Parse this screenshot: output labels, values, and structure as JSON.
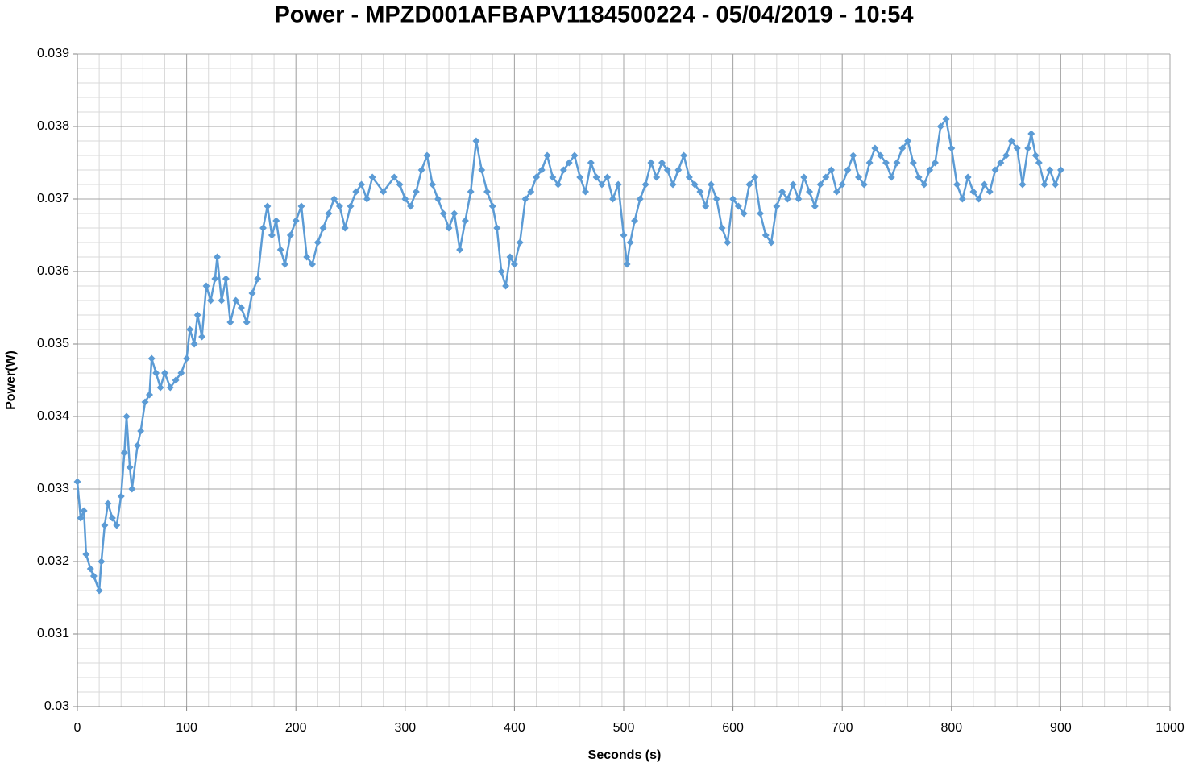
{
  "chart_data": {
    "type": "line",
    "title": "Power - MPZD001AFBAPV1184500224 - 05/04/2019 - 10:54",
    "x_label": "Seconds (s)",
    "y_label": "Power(W)",
    "xlim": [
      0,
      1000
    ],
    "xticks": [
      0,
      100,
      200,
      300,
      400,
      500,
      600,
      700,
      800,
      900,
      1000
    ],
    "ylim": [
      0.03,
      0.039
    ],
    "yticks": [
      0.03,
      0.031,
      0.032,
      0.033,
      0.034,
      0.035,
      0.036,
      0.037,
      0.038,
      0.039
    ],
    "grid": true,
    "minor_grid": {
      "x": 20,
      "y": 0.0002
    },
    "marker": "diamond",
    "x": [
      0,
      3,
      6,
      8,
      12,
      15,
      20,
      22,
      25,
      28,
      32,
      36,
      40,
      43,
      45,
      48,
      50,
      55,
      58,
      62,
      66,
      68,
      72,
      76,
      80,
      85,
      90,
      95,
      100,
      103,
      107,
      110,
      114,
      118,
      122,
      126,
      128,
      132,
      136,
      140,
      145,
      150,
      155,
      160,
      165,
      170,
      174,
      178,
      182,
      186,
      190,
      195,
      200,
      205,
      210,
      215,
      220,
      225,
      230,
      235,
      240,
      245,
      250,
      255,
      260,
      265,
      270,
      280,
      290,
      295,
      300,
      305,
      310,
      315,
      320,
      325,
      330,
      335,
      340,
      345,
      350,
      355,
      360,
      365,
      370,
      375,
      380,
      384,
      388,
      392,
      396,
      400,
      405,
      410,
      415,
      420,
      425,
      430,
      435,
      440,
      445,
      450,
      455,
      460,
      465,
      470,
      475,
      480,
      485,
      490,
      495,
      500,
      503,
      506,
      510,
      515,
      520,
      525,
      530,
      535,
      540,
      545,
      550,
      555,
      560,
      565,
      570,
      575,
      580,
      585,
      590,
      595,
      600,
      605,
      610,
      615,
      620,
      625,
      630,
      635,
      640,
      645,
      650,
      655,
      660,
      665,
      670,
      675,
      680,
      685,
      690,
      695,
      700,
      705,
      710,
      715,
      720,
      725,
      730,
      735,
      740,
      745,
      750,
      755,
      760,
      765,
      770,
      775,
      780,
      785,
      790,
      795,
      800,
      805,
      810,
      815,
      820,
      825,
      830,
      835,
      840,
      845,
      850,
      855,
      860,
      865,
      870,
      873,
      877,
      880,
      885,
      890,
      895,
      900
    ],
    "series": [
      {
        "name": "Power",
        "color": "#5b9bd5",
        "values": [
          0.0331,
          0.0326,
          0.0327,
          0.0321,
          0.0319,
          0.0318,
          0.0316,
          0.032,
          0.0325,
          0.0328,
          0.0326,
          0.0325,
          0.0329,
          0.0335,
          0.034,
          0.0333,
          0.033,
          0.0336,
          0.0338,
          0.0342,
          0.0343,
          0.0348,
          0.0346,
          0.0344,
          0.0346,
          0.0344,
          0.0345,
          0.0346,
          0.0348,
          0.0352,
          0.035,
          0.0354,
          0.0351,
          0.0358,
          0.0356,
          0.0359,
          0.0362,
          0.0356,
          0.0359,
          0.0353,
          0.0356,
          0.0355,
          0.0353,
          0.0357,
          0.0359,
          0.0366,
          0.0369,
          0.0365,
          0.0367,
          0.0363,
          0.0361,
          0.0365,
          0.0367,
          0.0369,
          0.0362,
          0.0361,
          0.0364,
          0.0366,
          0.0368,
          0.037,
          0.0369,
          0.0366,
          0.0369,
          0.0371,
          0.0372,
          0.037,
          0.0373,
          0.0371,
          0.0373,
          0.0372,
          0.037,
          0.0369,
          0.0371,
          0.0374,
          0.0376,
          0.0372,
          0.037,
          0.0368,
          0.0366,
          0.0368,
          0.0363,
          0.0367,
          0.0371,
          0.0378,
          0.0374,
          0.0371,
          0.0369,
          0.0366,
          0.036,
          0.0358,
          0.0362,
          0.0361,
          0.0364,
          0.037,
          0.0371,
          0.0373,
          0.0374,
          0.0376,
          0.0373,
          0.0372,
          0.0374,
          0.0375,
          0.0376,
          0.0373,
          0.0371,
          0.0375,
          0.0373,
          0.0372,
          0.0373,
          0.037,
          0.0372,
          0.0365,
          0.0361,
          0.0364,
          0.0367,
          0.037,
          0.0372,
          0.0375,
          0.0373,
          0.0375,
          0.0374,
          0.0372,
          0.0374,
          0.0376,
          0.0373,
          0.0372,
          0.0371,
          0.0369,
          0.0372,
          0.037,
          0.0366,
          0.0364,
          0.037,
          0.0369,
          0.0368,
          0.0372,
          0.0373,
          0.0368,
          0.0365,
          0.0364,
          0.0369,
          0.0371,
          0.037,
          0.0372,
          0.037,
          0.0373,
          0.0371,
          0.0369,
          0.0372,
          0.0373,
          0.0374,
          0.0371,
          0.0372,
          0.0374,
          0.0376,
          0.0373,
          0.0372,
          0.0375,
          0.0377,
          0.0376,
          0.0375,
          0.0373,
          0.0375,
          0.0377,
          0.0378,
          0.0375,
          0.0373,
          0.0372,
          0.0374,
          0.0375,
          0.038,
          0.0381,
          0.0377,
          0.0372,
          0.037,
          0.0373,
          0.0371,
          0.037,
          0.0372,
          0.0371,
          0.0374,
          0.0375,
          0.0376,
          0.0378,
          0.0377,
          0.0372,
          0.0377,
          0.0379,
          0.0376,
          0.0375,
          0.0372,
          0.0374,
          0.0372,
          0.0374
        ]
      }
    ]
  }
}
